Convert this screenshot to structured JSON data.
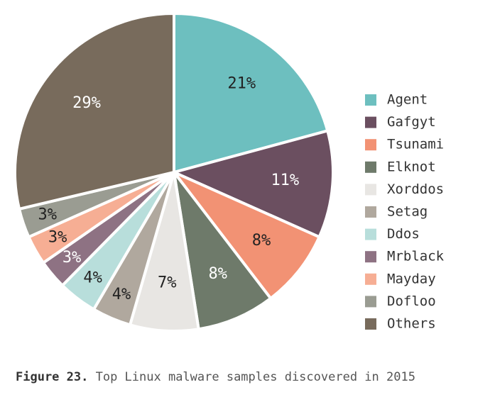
{
  "chart_data": {
    "type": "pie",
    "categories": [
      "Agent",
      "Gafgyt",
      "Tsunami",
      "Elknot",
      "Xorddos",
      "Setag",
      "Ddos",
      "Mrblack",
      "Mayday",
      "Dofloo",
      "Others"
    ],
    "values": [
      21,
      11,
      8,
      8,
      7,
      4,
      4,
      3,
      3,
      3,
      29
    ],
    "value_labels": [
      "21%",
      "11%",
      "8%",
      "8%",
      "7%",
      "4%",
      "4%",
      "3%",
      "3%",
      "3%",
      "29%"
    ],
    "colors": [
      "#6dbfbf",
      "#6b4f60",
      "#f29274",
      "#6e7a6a",
      "#e8e6e3",
      "#b0a89e",
      "#b8dedb",
      "#8e7283",
      "#f6ae94",
      "#9a9c92",
      "#786b5c"
    ],
    "caption_label": "Figure 23.",
    "caption": "Top Linux malware samples discovered in 2015"
  }
}
